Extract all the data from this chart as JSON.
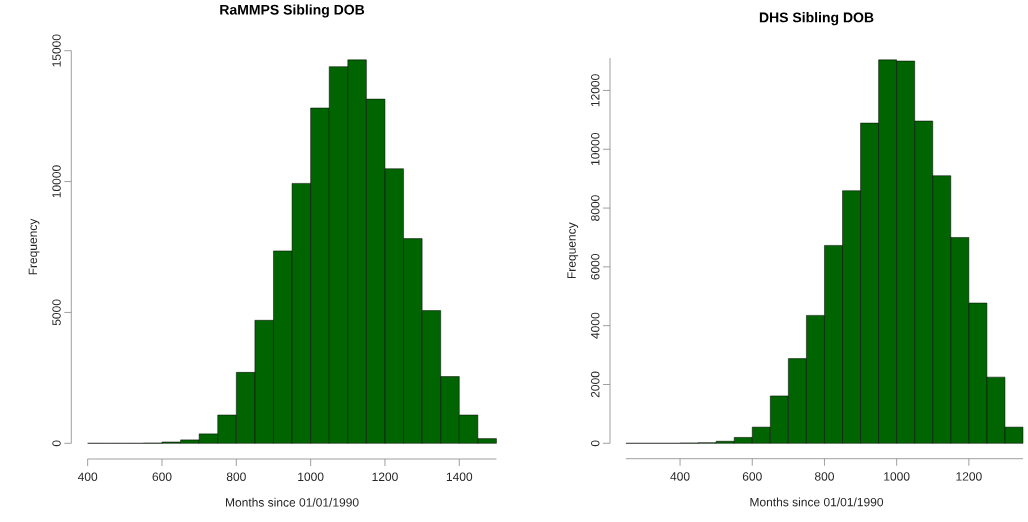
{
  "chart_data": [
    {
      "type": "histogram",
      "title": "RaMMPS Sibling DOB",
      "xlabel": "Months since 01/01/1990",
      "ylabel": "Frequency",
      "color": "#006400",
      "bins": [
        400,
        450,
        500,
        550,
        600,
        650,
        700,
        750,
        800,
        850,
        900,
        950,
        1000,
        1050,
        1100,
        1150,
        1200,
        1250,
        1300,
        1350,
        1400,
        1450,
        1500
      ],
      "values": [
        0,
        0,
        0,
        10,
        50,
        130,
        360,
        1080,
        2710,
        4700,
        7350,
        9930,
        12810,
        14390,
        14650,
        13150,
        10490,
        7820,
        5070,
        2550,
        1080,
        180
      ],
      "xlim": [
        400,
        1500
      ],
      "ylim": [
        0,
        15000
      ],
      "xticks": [
        400,
        600,
        800,
        1000,
        1200,
        1400
      ],
      "yticks": [
        0,
        5000,
        10000,
        15000
      ]
    },
    {
      "type": "histogram",
      "title": "DHS Sibling DOB",
      "xlabel": "Months since 01/01/1990",
      "ylabel": "Frequency",
      "color": "#006400",
      "bins": [
        250,
        300,
        350,
        400,
        450,
        500,
        550,
        600,
        650,
        700,
        750,
        800,
        850,
        900,
        950,
        1000,
        1050,
        1100,
        1150,
        1200,
        1250,
        1300,
        1350
      ],
      "values": [
        0,
        0,
        0,
        10,
        20,
        70,
        200,
        550,
        1610,
        2880,
        4350,
        6730,
        8590,
        10890,
        13040,
        13000,
        10960,
        9100,
        7000,
        4770,
        2250,
        550
      ],
      "xlim": [
        250,
        1350
      ],
      "ylim": [
        0,
        13100
      ],
      "xticks": [
        400,
        600,
        800,
        1000,
        1200
      ],
      "yticks": [
        0,
        2000,
        4000,
        6000,
        8000,
        10000,
        12000
      ]
    }
  ]
}
